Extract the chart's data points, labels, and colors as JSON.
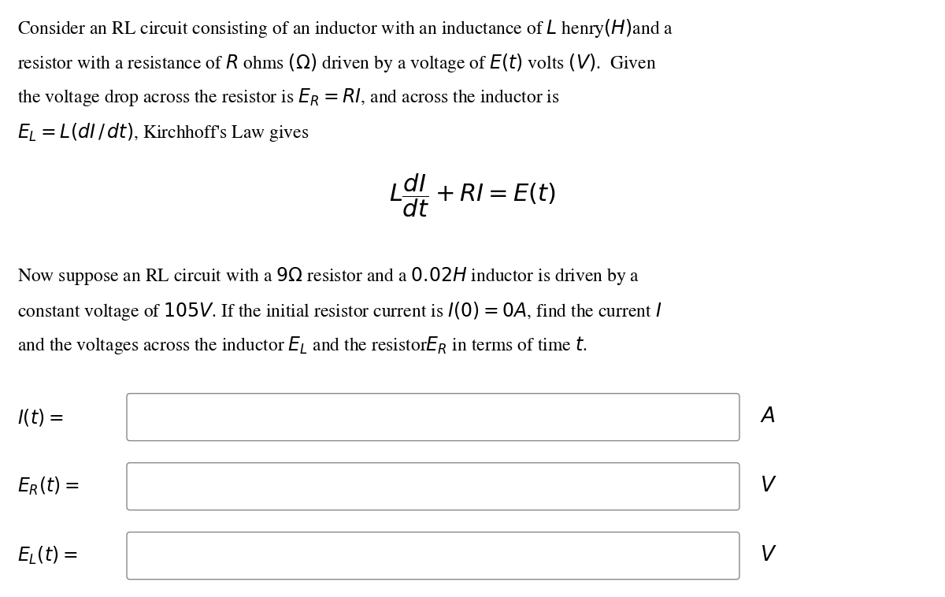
{
  "bg_color": "#ffffff",
  "text_color": "#000000",
  "box_color": "#888888",
  "paragraph1_lines": [
    "Consider an RL circuit consisting of an inductor with an inductance of $L$ henry$(H)$and a",
    "resistor with a resistance of $R$ ohms $(\\Omega)$ driven by a voltage of $E(t)$ volts $(V)$.  Given",
    "the voltage drop across the resistor is $E_R = RI$, and across the inductor is",
    "$E_L = L(dI\\,/\\,dt)$, Kirchhoff's Law gives"
  ],
  "center_equation": "$L\\dfrac{dI}{dt} + RI = E(t)$",
  "paragraph2_lines": [
    "Now suppose an RL circuit with a $9\\Omega$ resistor and a $0.02H$ inductor is driven by a",
    "constant voltage of $105V$. If the initial resistor current is $I(0) = 0A$, find the current $I$",
    "and the voltages across the inductor $E_L$ and the resistor$E_R$ in terms of time $t$."
  ],
  "input_labels": [
    "$I(t) =$",
    "$E_R(t) =$",
    "$E_L(t) =$"
  ],
  "input_units": [
    "$A$",
    "$V$",
    "$V$"
  ],
  "font_size": 17,
  "eq_font_size": 22,
  "fig_width": 12.0,
  "fig_height": 7.58
}
